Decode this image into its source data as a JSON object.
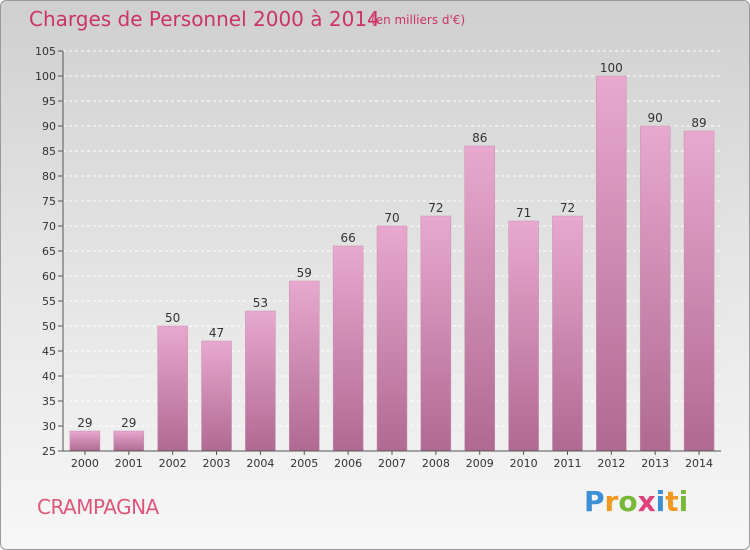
{
  "chart_data": {
    "type": "bar",
    "title": "Charges de Personnel 2000 à 2014",
    "subtitle": "(en milliers d'€)",
    "categories": [
      "2000",
      "2001",
      "2002",
      "2003",
      "2004",
      "2005",
      "2006",
      "2007",
      "2008",
      "2009",
      "2010",
      "2011",
      "2012",
      "2013",
      "2014"
    ],
    "values": [
      29,
      29,
      50,
      47,
      53,
      59,
      66,
      70,
      72,
      86,
      71,
      72,
      100,
      90,
      89
    ],
    "ylim": [
      25,
      105
    ],
    "yticks": [
      25,
      30,
      35,
      40,
      45,
      50,
      55,
      60,
      65,
      70,
      75,
      80,
      85,
      90,
      95,
      100,
      105
    ],
    "grid": true,
    "bar_color": "#d98ab4",
    "xlabel": "",
    "ylabel": ""
  },
  "footer": {
    "commune": "CRAMPAGNA",
    "logo_letters": [
      {
        "ch": "P",
        "color": "#3a8fd6"
      },
      {
        "ch": "r",
        "color": "#f29a1f"
      },
      {
        "ch": "o",
        "color": "#7ab83a"
      },
      {
        "ch": "x",
        "color": "#e0407a"
      },
      {
        "ch": "i",
        "color": "#3a8fd6"
      },
      {
        "ch": "t",
        "color": "#f29a1f"
      },
      {
        "ch": "i",
        "color": "#7ab83a"
      }
    ]
  }
}
